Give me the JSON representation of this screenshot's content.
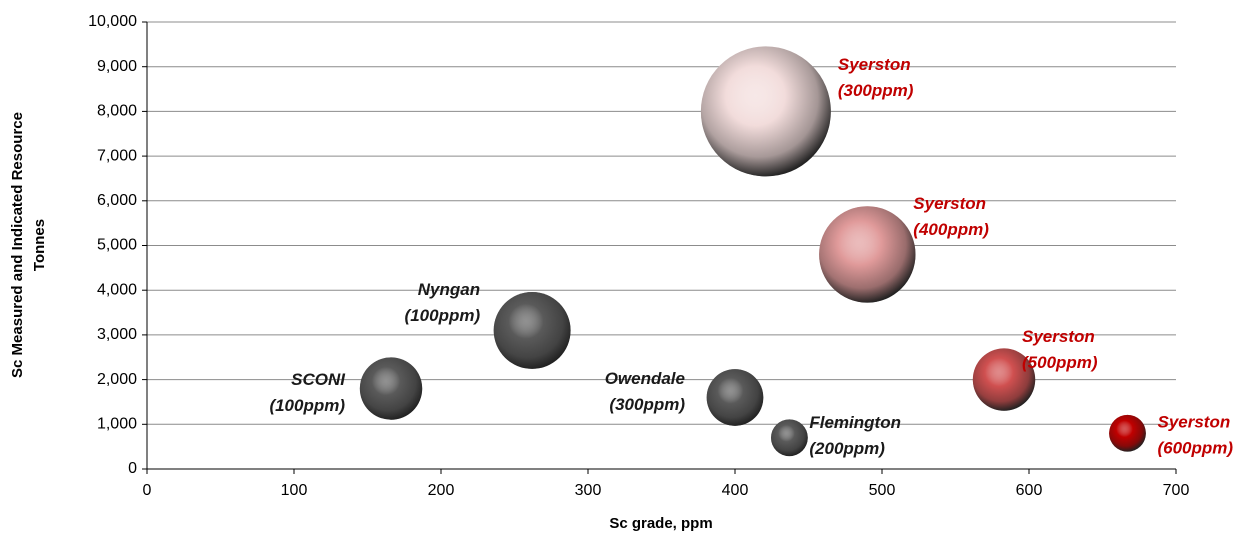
{
  "chart_data": {
    "type": "bubble",
    "x_label": "Sc grade, ppm",
    "y_label": [
      "Sc Measured and Indicated Resource",
      "Tonnes"
    ],
    "xlim": [
      0,
      700
    ],
    "xticks": [
      0,
      100,
      200,
      300,
      400,
      500,
      600,
      700
    ],
    "ylim": [
      0,
      10000
    ],
    "yticks": [
      0,
      {
        "value": 1000,
        "label": "1,000"
      },
      {
        "value": 2000,
        "label": "2,000"
      },
      {
        "value": 3000,
        "label": "3,000"
      },
      {
        "value": 4000,
        "label": "4,000"
      },
      {
        "value": 5000,
        "label": "5,000"
      },
      {
        "value": 6000,
        "label": "6,000"
      },
      {
        "value": 7000,
        "label": "7,000"
      },
      {
        "value": 8000,
        "label": "8,000"
      },
      {
        "value": 9000,
        "label": "9,000"
      },
      {
        "value": 10000,
        "label": "10,000"
      }
    ],
    "grid": true,
    "points": [
      {
        "label": [
          "SCONI",
          "(100ppm)"
        ],
        "x": 166,
        "y": 1800,
        "size": 23,
        "color": "#5a5a5a",
        "label_color": "#1a1a1a"
      },
      {
        "label": [
          "Nyngan",
          "(100ppm)"
        ],
        "x": 262,
        "y": 3100,
        "size": 35,
        "color": "#5a5a5a",
        "label_color": "#1a1a1a"
      },
      {
        "label": [
          "Owendale",
          "(300ppm)"
        ],
        "x": 400,
        "y": 1600,
        "size": 19,
        "color": "#5a5a5a",
        "label_color": "#1a1a1a"
      },
      {
        "label": [
          "Flemington",
          "(200ppm)"
        ],
        "x": 437,
        "y": 700,
        "size": 8,
        "color": "#5a5a5a",
        "label_color": "#1a1a1a"
      },
      {
        "label": [
          "Syerston",
          "(300ppm)"
        ],
        "x": 421,
        "y": 8000,
        "size": 100,
        "color": "#f2dcdb",
        "label_color": "#c00000"
      },
      {
        "label": [
          "Syerston",
          "(400ppm)"
        ],
        "x": 490,
        "y": 4800,
        "size": 55,
        "color": "#e09a9a",
        "label_color": "#c00000"
      },
      {
        "label": [
          "Syerston",
          "(500ppm)"
        ],
        "x": 583,
        "y": 2000,
        "size": 23,
        "color": "#d05050",
        "label_color": "#c00000"
      },
      {
        "label": [
          "Syerston",
          "(600ppm)"
        ],
        "x": 667,
        "y": 800,
        "size": 8,
        "color": "#c00000",
        "label_color": "#c00000"
      }
    ]
  }
}
